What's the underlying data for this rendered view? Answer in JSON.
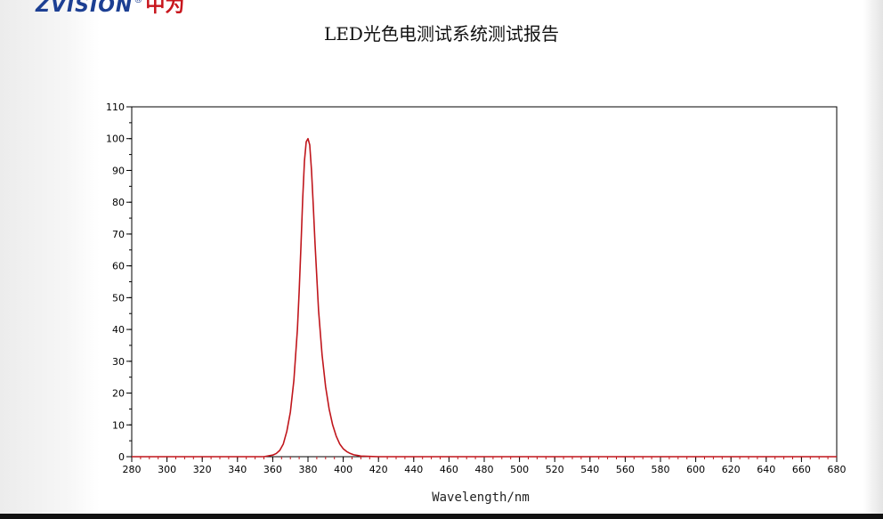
{
  "brand": {
    "name_en": "ZVISION",
    "registered_mark": "®",
    "name_cn": "中为"
  },
  "report_title": "LED光色电测试系统测试报告",
  "colors": {
    "curve": "#c0161c",
    "axis": "#000000",
    "tick_minor": "#c0161c",
    "brand_blue": "#1c3f93",
    "brand_red": "#c8161d"
  },
  "chart_data": {
    "type": "line",
    "title": "LED光色电测试系统测试报告",
    "xlabel": "Wavelength/nm",
    "ylabel": "",
    "xlim": [
      280,
      680
    ],
    "ylim": [
      0,
      110
    ],
    "x_ticks": [
      "280",
      "300",
      "320",
      "340",
      "360",
      "380",
      "400",
      "420",
      "440",
      "460",
      "480",
      "500",
      "520",
      "540",
      "560",
      "580",
      "600",
      "620",
      "640",
      "660",
      "680"
    ],
    "y_ticks": [
      "0",
      "10",
      "20",
      "30",
      "40",
      "50",
      "60",
      "70",
      "80",
      "90",
      "100",
      "110"
    ],
    "grid": false,
    "series": [
      {
        "x": [
          280,
          355,
          360,
          362,
          364,
          366,
          368,
          370,
          372,
          374,
          375,
          376,
          377,
          378,
          379,
          380,
          381,
          382,
          383,
          384,
          386,
          388,
          390,
          392,
          394,
          396,
          398,
          400,
          402,
          404,
          406,
          408,
          410,
          415,
          420,
          425,
          680
        ],
        "y": [
          0,
          0,
          0.5,
          1,
          2,
          4,
          8,
          14,
          24,
          40,
          52,
          66,
          81,
          93,
          99,
          100,
          98,
          90,
          79,
          67,
          46,
          32,
          22,
          15,
          10,
          6.5,
          4,
          2.5,
          1.6,
          1,
          0.6,
          0.4,
          0.2,
          0.1,
          0,
          0,
          0
        ]
      }
    ]
  }
}
